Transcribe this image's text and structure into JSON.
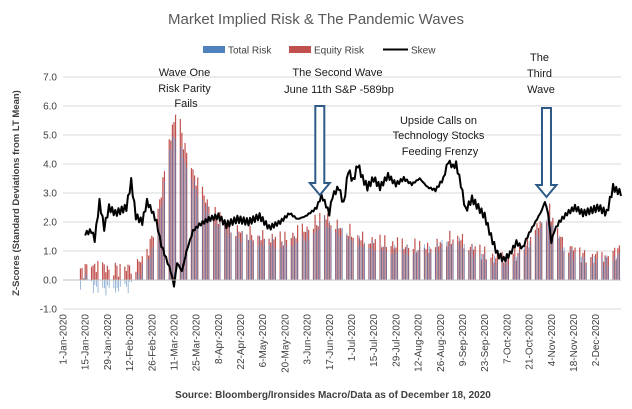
{
  "chart_data": {
    "type": "bar+line",
    "title": "Market Implied Risk & The Pandemic Waves",
    "ylabel": "Z-Scores (Standard Deviations from LT Mean)",
    "ylim": [
      -1.0,
      7.0
    ],
    "yticks": [
      "-1.0",
      "0.0",
      "1.0",
      "2.0",
      "3.0",
      "4.0",
      "5.0",
      "6.0",
      "7.0"
    ],
    "x_tick_labels": [
      "1-Jan-2020",
      "15-Jan-2020",
      "29-Jan-2020",
      "12-Feb-2020",
      "26-Feb-2020",
      "11-Mar-2020",
      "25-Mar-2020",
      "8-Apr-2020",
      "22-Apr-2020",
      "6-May-2020",
      "20-May-2020",
      "3-Jun-2020",
      "17-Jun-2020",
      "1-Jul-2020",
      "15-Jul-2020",
      "29-Jul-2020",
      "12-Aug-2020",
      "26-Aug-2020",
      "9-Sep-2020",
      "23-Sep-2020",
      "7-Oct-2020",
      "21-Oct-2020",
      "4-Nov-2020",
      "18-Nov-2020",
      "2-Dec-2020"
    ],
    "x_day_range": [
      0,
      352
    ],
    "legend": [
      "Total Risk",
      "Equity Risk",
      "Skew"
    ],
    "colors": {
      "total_risk": "#4f81bd",
      "equity_risk": "#c0504d",
      "skew": "#000000",
      "arrow": "#2e5a88",
      "gridline": "#d9d9d9"
    },
    "series": [
      {
        "name": "Total Risk",
        "kind": "bar",
        "approx_keypoints": [
          [
            10,
            -0.3
          ],
          [
            14,
            0.2
          ],
          [
            20,
            -0.3
          ],
          [
            30,
            -0.35
          ],
          [
            40,
            -0.3
          ],
          [
            48,
            0.2
          ],
          [
            55,
            0.8
          ],
          [
            62,
            2.5
          ],
          [
            67,
            4.5
          ],
          [
            72,
            5.2
          ],
          [
            77,
            4.0
          ],
          [
            85,
            3.0
          ],
          [
            95,
            2.0
          ],
          [
            110,
            1.5
          ],
          [
            125,
            1.3
          ],
          [
            140,
            1.2
          ],
          [
            155,
            1.5
          ],
          [
            165,
            2.0
          ],
          [
            175,
            1.6
          ],
          [
            190,
            1.2
          ],
          [
            210,
            1.0
          ],
          [
            230,
            1.0
          ],
          [
            248,
            1.3
          ],
          [
            262,
            0.9
          ],
          [
            275,
            0.6
          ],
          [
            290,
            0.9
          ],
          [
            300,
            1.7
          ],
          [
            307,
            2.1
          ],
          [
            315,
            1.1
          ],
          [
            330,
            0.7
          ],
          [
            345,
            0.7
          ],
          [
            352,
            0.9
          ]
        ]
      },
      {
        "name": "Equity Risk",
        "kind": "bar",
        "approx_keypoints": [
          [
            10,
            0.2
          ],
          [
            14,
            0.4
          ],
          [
            20,
            0.5
          ],
          [
            30,
            0.4
          ],
          [
            40,
            0.4
          ],
          [
            48,
            0.6
          ],
          [
            55,
            1.2
          ],
          [
            62,
            3.0
          ],
          [
            67,
            4.8
          ],
          [
            72,
            5.9
          ],
          [
            77,
            4.5
          ],
          [
            85,
            3.3
          ],
          [
            95,
            2.3
          ],
          [
            110,
            1.7
          ],
          [
            125,
            1.5
          ],
          [
            140,
            1.4
          ],
          [
            155,
            1.8
          ],
          [
            165,
            2.2
          ],
          [
            175,
            1.8
          ],
          [
            190,
            1.4
          ],
          [
            210,
            1.2
          ],
          [
            230,
            1.1
          ],
          [
            248,
            1.5
          ],
          [
            262,
            1.0
          ],
          [
            275,
            0.7
          ],
          [
            290,
            1.0
          ],
          [
            300,
            1.9
          ],
          [
            307,
            2.4
          ],
          [
            315,
            1.3
          ],
          [
            330,
            0.8
          ],
          [
            345,
            0.8
          ],
          [
            352,
            1.1
          ]
        ]
      },
      {
        "name": "Skew",
        "kind": "line",
        "approx_keypoints": [
          [
            14,
            1.6
          ],
          [
            18,
            1.7
          ],
          [
            20,
            1.4
          ],
          [
            23,
            2.7
          ],
          [
            26,
            1.8
          ],
          [
            29,
            2.5
          ],
          [
            33,
            2.3
          ],
          [
            40,
            2.5
          ],
          [
            43,
            3.4
          ],
          [
            46,
            2.2
          ],
          [
            50,
            2.0
          ],
          [
            53,
            2.7
          ],
          [
            56,
            2.4
          ],
          [
            59,
            2.0
          ],
          [
            62,
            1.2
          ],
          [
            66,
            0.6
          ],
          [
            68,
            0.3
          ],
          [
            70,
            -0.2
          ],
          [
            72,
            0.6
          ],
          [
            75,
            0.3
          ],
          [
            78,
            1.0
          ],
          [
            82,
            1.7
          ],
          [
            86,
            1.9
          ],
          [
            92,
            2.1
          ],
          [
            98,
            2.2
          ],
          [
            103,
            1.9
          ],
          [
            110,
            2.1
          ],
          [
            117,
            2.0
          ],
          [
            124,
            2.2
          ],
          [
            130,
            1.8
          ],
          [
            137,
            2.0
          ],
          [
            143,
            2.3
          ],
          [
            148,
            2.1
          ],
          [
            153,
            2.2
          ],
          [
            158,
            2.4
          ],
          [
            160,
            2.5
          ],
          [
            163,
            2.9
          ],
          [
            165,
            2.7
          ],
          [
            168,
            2.3
          ],
          [
            170,
            2.9
          ],
          [
            174,
            3.2
          ],
          [
            177,
            2.6
          ],
          [
            180,
            3.8
          ],
          [
            183,
            3.4
          ],
          [
            186,
            4.0
          ],
          [
            189,
            3.5
          ],
          [
            192,
            3.2
          ],
          [
            196,
            3.5
          ],
          [
            200,
            3.2
          ],
          [
            205,
            3.6
          ],
          [
            210,
            3.3
          ],
          [
            215,
            3.5
          ],
          [
            220,
            3.3
          ],
          [
            225,
            3.5
          ],
          [
            230,
            3.2
          ],
          [
            235,
            3.1
          ],
          [
            240,
            3.5
          ],
          [
            243,
            4.1
          ],
          [
            246,
            3.9
          ],
          [
            248,
            4.0
          ],
          [
            251,
            3.3
          ],
          [
            254,
            2.4
          ],
          [
            258,
            2.8
          ],
          [
            262,
            2.5
          ],
          [
            266,
            2.2
          ],
          [
            270,
            1.5
          ],
          [
            274,
            0.9
          ],
          [
            278,
            0.7
          ],
          [
            282,
            0.9
          ],
          [
            286,
            1.3
          ],
          [
            290,
            1.1
          ],
          [
            293,
            1.5
          ],
          [
            296,
            1.8
          ],
          [
            299,
            2.1
          ],
          [
            302,
            2.4
          ],
          [
            304,
            2.7
          ],
          [
            306,
            2.3
          ],
          [
            308,
            1.3
          ],
          [
            310,
            1.7
          ],
          [
            313,
            2.0
          ],
          [
            318,
            2.3
          ],
          [
            323,
            2.5
          ],
          [
            328,
            2.3
          ],
          [
            333,
            2.4
          ],
          [
            338,
            2.5
          ],
          [
            343,
            2.3
          ],
          [
            347,
            3.2
          ],
          [
            349,
            3.1
          ],
          [
            352,
            3.0
          ]
        ]
      }
    ],
    "annotations": [
      {
        "lines": [
          "Wave  One",
          "Risk Parity",
          "Fails"
        ]
      },
      {
        "lines": [
          "The Second Wave",
          "June 11th S&P -589bp"
        ]
      },
      {
        "lines": [
          "Upside Calls on",
          "Technology Stocks",
          "Feeding Frenzy"
        ]
      },
      {
        "lines": [
          "The",
          "Third",
          "Wave"
        ]
      }
    ],
    "arrow_days": [
      162,
      305
    ],
    "source": "Source: Bloomberg/Ironsides Macro/Data as of December 18, 2020"
  }
}
